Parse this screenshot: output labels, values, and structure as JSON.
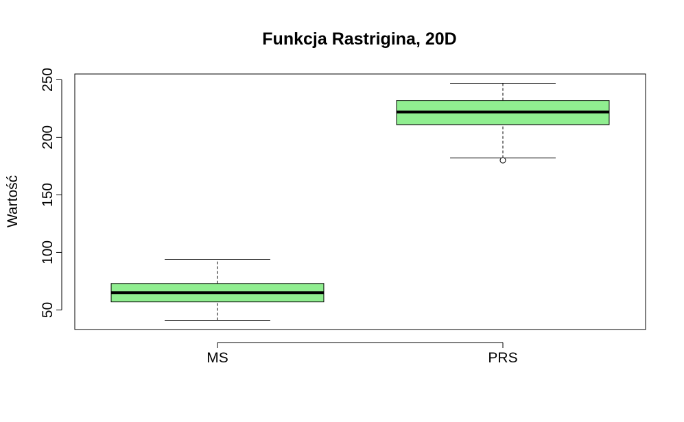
{
  "chart_data": {
    "type": "boxplot",
    "title": "Funkcja Rastrigina, 20D",
    "xlabel": "",
    "ylabel": "Wartość",
    "ylim": [
      33,
      255
    ],
    "yticks": [
      50,
      100,
      150,
      200,
      250
    ],
    "box_color": "#90EE90",
    "grid": false,
    "categories": [
      "MS",
      "PRS"
    ],
    "boxes": [
      {
        "label": "MS",
        "whisker_low": 41,
        "q1": 57,
        "median": 65,
        "q3": 73,
        "whisker_high": 94,
        "outliers": []
      },
      {
        "label": "PRS",
        "whisker_low": 182,
        "q1": 211,
        "median": 222,
        "q3": 232,
        "whisker_high": 247,
        "outliers": [
          180
        ]
      }
    ]
  }
}
